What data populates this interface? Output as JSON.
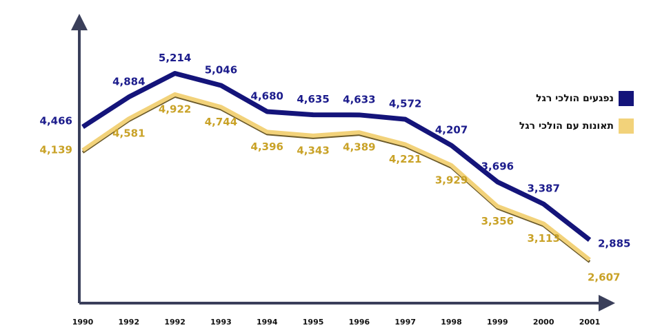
{
  "chart_data": {
    "type": "line",
    "categories": [
      "1990",
      "1992",
      "1992",
      "1993",
      "1994",
      "1995",
      "1996",
      "1997",
      "1998",
      "1999",
      "2000",
      "2001"
    ],
    "series": [
      {
        "name": "נפגעים הולכי רגל",
        "color": "#14147a",
        "values": [
          4466,
          4884,
          5214,
          5046,
          4680,
          4635,
          4633,
          4572,
          4207,
          3696,
          3387,
          2885
        ],
        "value_labels": [
          "4,466",
          "4,884",
          "5,214",
          "5,046",
          "4,680",
          "4,635",
          "4,633",
          "4,572",
          "4,207",
          "3,696",
          "3,387",
          "2,885"
        ]
      },
      {
        "name": "תאונות עם הולכי רגל",
        "color": "#f2d27a",
        "values": [
          4139,
          4581,
          4922,
          4744,
          4396,
          4343,
          4389,
          4221,
          3929,
          3356,
          3113,
          2607
        ],
        "value_labels": [
          "4,139",
          "4,581",
          "4,922",
          "4,744",
          "4,396",
          "4,343",
          "4,389",
          "4,221",
          "3,929",
          "3,356",
          "3,113",
          "2,607"
        ]
      }
    ],
    "ylim": [
      2000,
      6000
    ]
  }
}
